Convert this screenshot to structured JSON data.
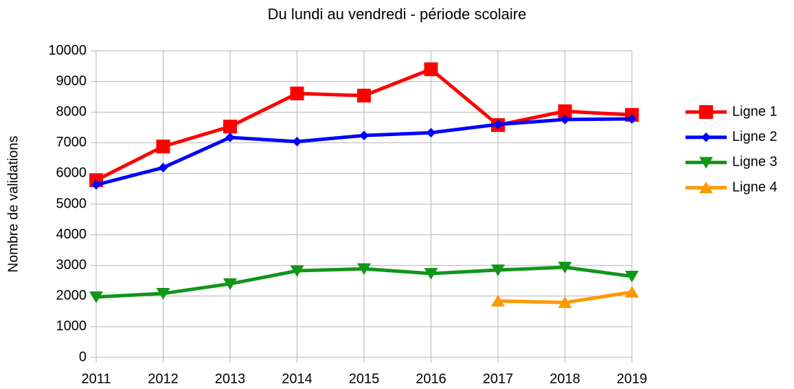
{
  "chart_data": {
    "type": "line",
    "title": "Du lundi au vendredi - période scolaire",
    "y_label": "Nombre de validations",
    "categories": [
      "2011",
      "2012",
      "2013",
      "2014",
      "2015",
      "2016",
      "2017",
      "2018",
      "2019"
    ],
    "series": [
      {
        "name": "Ligne 1",
        "color": "#ff0000",
        "marker": "square",
        "values": [
          5780,
          6880,
          7530,
          8610,
          8540,
          9400,
          7580,
          8030,
          7910
        ]
      },
      {
        "name": "Ligne 2",
        "color": "#0000ff",
        "marker": "diamond",
        "values": [
          5630,
          6190,
          7175,
          7040,
          7240,
          7330,
          7600,
          7760,
          7780
        ]
      },
      {
        "name": "Ligne 3",
        "color": "#109618",
        "marker": "triangle-down",
        "values": [
          1970,
          2085,
          2400,
          2825,
          2890,
          2735,
          2850,
          2940,
          2645
        ]
      },
      {
        "name": "Ligne 4",
        "color": "#ff9900",
        "marker": "triangle-up",
        "values": [
          null,
          null,
          null,
          null,
          null,
          null,
          1840,
          1790,
          2130
        ]
      }
    ],
    "ylim": [
      0,
      10000
    ],
    "yticks": [
      0,
      1000,
      2000,
      3000,
      4000,
      5000,
      6000,
      7000,
      8000,
      9000,
      10000
    ],
    "grid": true,
    "legend": "right"
  }
}
